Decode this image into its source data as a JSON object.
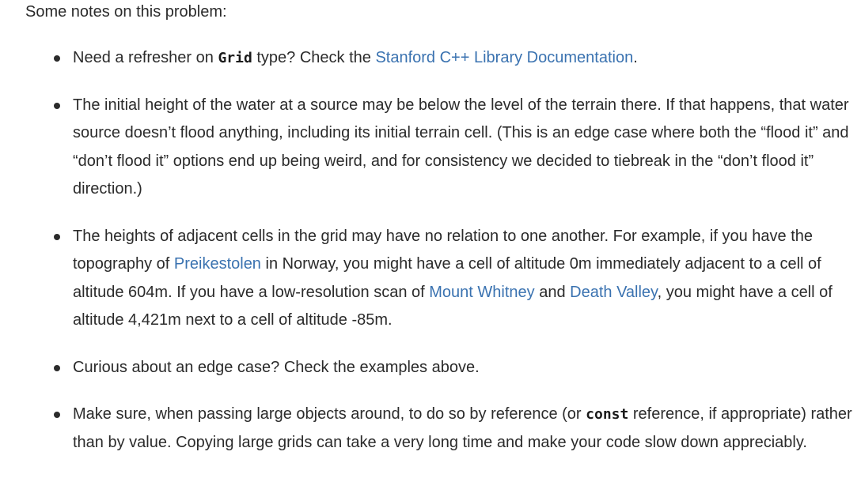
{
  "intro": "Some notes on this problem:",
  "notes": [
    {
      "t1": "Need a refresher on ",
      "code": "Grid",
      "t2": " type? Check the ",
      "link": "Stanford C++ Library Documentation",
      "t3": "."
    },
    {
      "text": "The initial height of the water at a source may be below the level of the terrain there. If that happens, that water source doesn’t flood anything, including its initial terrain cell. (This is an edge case where both the “flood it” and “don’t flood it” options end up being weird, and for consistency we decided to tiebreak in the “don’t flood it” direction.)"
    },
    {
      "t1": "The heights of adjacent cells in the grid may have no relation to one another. For example, if you have the topography of ",
      "link1": "Preikestolen",
      "t2": " in Norway, you might have a cell of altitude 0m immediately adjacent to a cell of altitude 604m. If you have a low-resolution scan of ",
      "link2": "Mount Whitney",
      "t3": " and ",
      "link3": "Death Valley",
      "t4": ", you might have a cell of altitude 4,421m next to a cell of altitude -85m."
    },
    {
      "text": "Curious about an edge case? Check the examples above."
    },
    {
      "t1": "Make sure, when passing large objects around, to do so by reference (or ",
      "code": "const",
      "t2": " reference, if appropriate) rather than by value. Copying large grids can take a very long time and make your code slow down appreciably."
    }
  ],
  "colors": {
    "text": "#2b2b2b",
    "link": "#3a72b0"
  }
}
